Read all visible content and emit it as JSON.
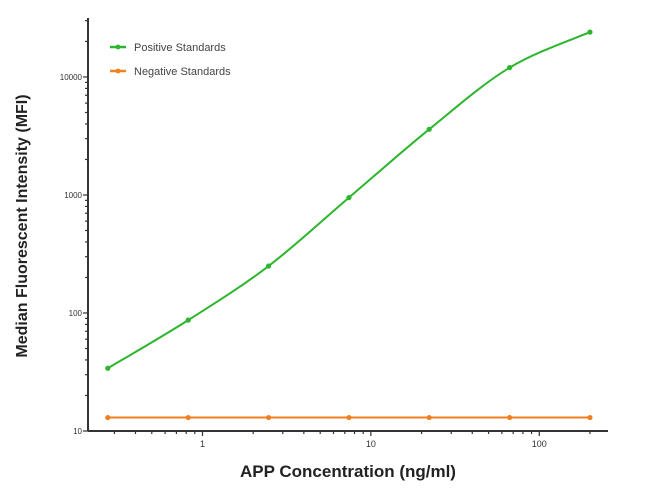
{
  "chart_data": {
    "type": "line",
    "title": "",
    "xlabel": "APP Concentration (ng/ml)",
    "ylabel": "Median  Fluorescent Intensity  (MFI)",
    "x_scale": "log",
    "y_scale": "log",
    "xlim": [
      0.209,
      256
    ],
    "ylim": [
      10,
      31600
    ],
    "x_ticks": [
      {
        "value": 1,
        "label": "1"
      },
      {
        "value": 10,
        "label": "10"
      },
      {
        "value": 100,
        "label": "100"
      }
    ],
    "y_ticks": [
      {
        "value": 10,
        "label": "10"
      },
      {
        "value": 100,
        "label": "100"
      },
      {
        "value": 1000,
        "label": "1000"
      },
      {
        "value": 10000,
        "label": "10000"
      }
    ],
    "grid": false,
    "legend_position": "top-left",
    "x": [
      0.274,
      0.823,
      2.47,
      7.41,
      22.2,
      66.7,
      200
    ],
    "series": [
      {
        "name": "Positive Standards",
        "color": "#2db52d",
        "values": [
          34,
          87,
          250,
          950,
          3600,
          12000,
          24000
        ],
        "curve": "smooth-fit"
      },
      {
        "name": "Negative Standards",
        "color": "#f07f1e",
        "values": [
          13,
          13,
          13,
          13,
          13,
          13,
          13
        ],
        "curve": "straight"
      }
    ]
  }
}
